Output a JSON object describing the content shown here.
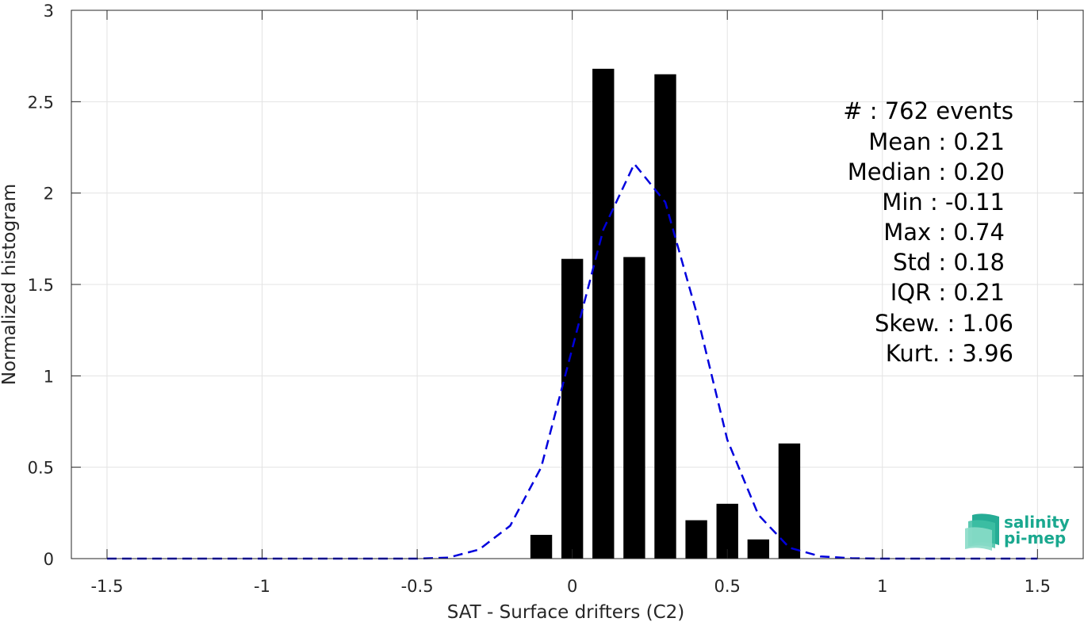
{
  "chart_data": {
    "type": "bar",
    "xlabel": "SAT - Surface drifters (C2)",
    "ylabel": "Normalized histogram",
    "xlim": [
      -1.5,
      1.5
    ],
    "ylim": [
      0,
      3
    ],
    "grid": true,
    "x_ticks": [
      {
        "value": -1.5,
        "label": "-1.5"
      },
      {
        "value": -1,
        "label": "-1"
      },
      {
        "value": -0.5,
        "label": "-0.5"
      },
      {
        "value": 0,
        "label": "0"
      },
      {
        "value": 0.5,
        "label": "0.5"
      },
      {
        "value": 1,
        "label": "1"
      },
      {
        "value": 1.5,
        "label": "1.5"
      }
    ],
    "y_ticks": [
      {
        "value": 0,
        "label": "0"
      },
      {
        "value": 0.5,
        "label": "0.5"
      },
      {
        "value": 1,
        "label": "1"
      },
      {
        "value": 1.5,
        "label": "1.5"
      },
      {
        "value": 2,
        "label": "2"
      },
      {
        "value": 2.5,
        "label": "2.5"
      },
      {
        "value": 3,
        "label": "3"
      }
    ],
    "histogram": {
      "color": "#000000",
      "bin_width": 0.1,
      "bin_centers": [
        -0.1,
        0.0,
        0.1,
        0.2,
        0.3,
        0.4,
        0.5,
        0.6,
        0.7
      ],
      "values": [
        0.13,
        1.64,
        2.68,
        1.65,
        2.65,
        0.21,
        0.3,
        0.105,
        0.63
      ]
    },
    "fit_curve": {
      "color": "#0000dd",
      "style": "dashed",
      "x": [
        -1.5,
        -1.4,
        -1.3,
        -1.2,
        -1.1,
        -1.0,
        -0.9,
        -0.8,
        -0.7,
        -0.6,
        -0.5,
        -0.4,
        -0.3,
        -0.2,
        -0.1,
        0.0,
        0.1,
        0.2,
        0.3,
        0.4,
        0.5,
        0.6,
        0.7,
        0.8,
        0.9,
        1.0,
        1.1,
        1.2,
        1.3,
        1.4,
        1.5
      ],
      "y": [
        0,
        0,
        0,
        0,
        0,
        0,
        0,
        0,
        0,
        0,
        0,
        0.005,
        0.05,
        0.18,
        0.5,
        1.15,
        1.8,
        2.16,
        1.95,
        1.35,
        0.65,
        0.24,
        0.06,
        0.012,
        0.002,
        0,
        0,
        0,
        0,
        0,
        0
      ]
    },
    "annotations": [
      "#  : 762 events",
      "Mean : 0.21",
      "Median : 0.20",
      "Min : -0.11",
      "Max : 0.74",
      "Std : 0.18",
      "IQR : 0.21",
      "Skew. : 1.06",
      "Kurt. : 3.96"
    ]
  },
  "logo": {
    "line1": "salinity",
    "line2": "pi-mep",
    "color": "#1aa88f"
  }
}
